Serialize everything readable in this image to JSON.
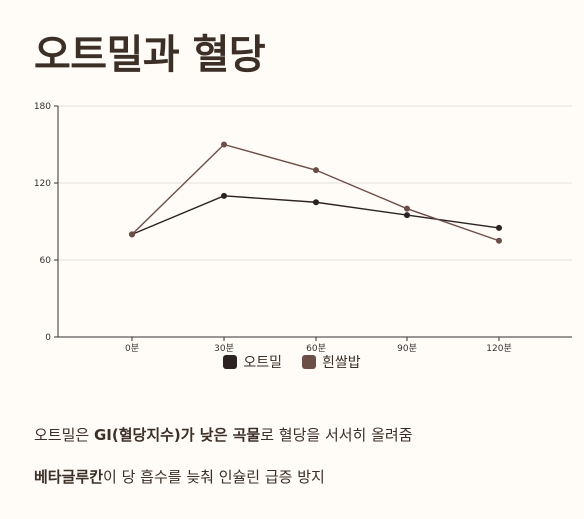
{
  "title": "오트밀과 혈당",
  "chart_data": {
    "type": "line",
    "x": [
      "0분",
      "30분",
      "60분",
      "90분",
      "120분"
    ],
    "series": [
      {
        "name": "오트밀",
        "values": [
          80,
          110,
          105,
          95,
          85
        ],
        "color": "#2b2221"
      },
      {
        "name": "흰쌀밥",
        "values": [
          80,
          150,
          130,
          100,
          75
        ],
        "color": "#6b4e47"
      }
    ],
    "ylim": [
      0,
      180
    ],
    "yticks": [
      0,
      60,
      120,
      180
    ],
    "grid": true,
    "legend": "bottom"
  },
  "notes": [
    {
      "parts": [
        {
          "text": "오트밀은 ",
          "bold": false
        },
        {
          "text": "GI(혈당지수)가 낮은 곡물",
          "bold": true
        },
        {
          "text": "로 혈당을 서서히 올려줌",
          "bold": false
        }
      ]
    },
    {
      "parts": [
        {
          "text": "베타글루칸",
          "bold": true
        },
        {
          "text": "이 당 흡수를 늦춰 인슐린 급증 방지",
          "bold": false
        }
      ]
    }
  ]
}
